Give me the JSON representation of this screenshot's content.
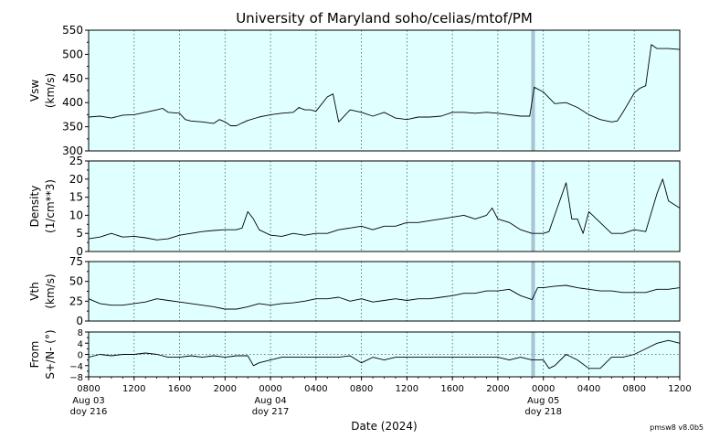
{
  "chart_data": [
    {
      "type": "line",
      "title": "University of Maryland  soho/celias/mtof/PM",
      "ylabel": [
        "Vsw",
        "(km/s)"
      ],
      "ylim": [
        300,
        550
      ],
      "yticks": [
        300,
        350,
        400,
        450,
        500,
        550
      ],
      "series": [
        {
          "points": [
            [
              8,
              370
            ],
            [
              9,
              372
            ],
            [
              10,
              368
            ],
            [
              11,
              374
            ],
            [
              12,
              375
            ],
            [
              13,
              380
            ],
            [
              14,
              385
            ],
            [
              14.5,
              388
            ],
            [
              15,
              380
            ],
            [
              16,
              378
            ],
            [
              16.5,
              365
            ],
            [
              17,
              362
            ],
            [
              18,
              360
            ],
            [
              19,
              357
            ],
            [
              19.5,
              365
            ],
            [
              20,
              360
            ],
            [
              20.5,
              352
            ],
            [
              21,
              352
            ],
            [
              21.5,
              358
            ],
            [
              22,
              363
            ],
            [
              23,
              370
            ],
            [
              24,
              375
            ],
            [
              25,
              378
            ],
            [
              26,
              380
            ],
            [
              26.5,
              390
            ],
            [
              27,
              385
            ],
            [
              27.5,
              385
            ],
            [
              28,
              382
            ],
            [
              29,
              412
            ],
            [
              29.5,
              418
            ],
            [
              30,
              360
            ],
            [
              31,
              385
            ],
            [
              32,
              380
            ],
            [
              33,
              372
            ],
            [
              34,
              380
            ],
            [
              35,
              368
            ],
            [
              36,
              365
            ],
            [
              37,
              370
            ],
            [
              38,
              370
            ],
            [
              39,
              372
            ],
            [
              40,
              380
            ],
            [
              41,
              380
            ],
            [
              42,
              378
            ],
            [
              43,
              380
            ],
            [
              44,
              378
            ],
            [
              45,
              375
            ],
            [
              46,
              372
            ],
            [
              46.5,
              372
            ],
            [
              46.8,
              372
            ],
            [
              47.2,
              432
            ],
            [
              48,
              422
            ],
            [
              48.5,
              410
            ],
            [
              49,
              398
            ],
            [
              50,
              400
            ],
            [
              51,
              390
            ],
            [
              52,
              375
            ],
            [
              53,
              365
            ],
            [
              54,
              360
            ],
            [
              54.5,
              362
            ],
            [
              55,
              380
            ],
            [
              56,
              420
            ],
            [
              56.5,
              430
            ],
            [
              57,
              435
            ],
            [
              57.5,
              520
            ],
            [
              58,
              512
            ],
            [
              59,
              512
            ],
            [
              60,
              510
            ],
            [
              61,
              506
            ],
            [
              62,
              500
            ],
            [
              63,
              505
            ]
          ]
        }
      ]
    },
    {
      "type": "line",
      "ylabel": [
        "Density",
        "(1/cm**3)"
      ],
      "ylim": [
        0,
        25
      ],
      "yticks": [
        0,
        5,
        10,
        15,
        20,
        25
      ],
      "series": [
        {
          "points": [
            [
              8,
              3.5
            ],
            [
              9,
              4
            ],
            [
              10,
              5
            ],
            [
              11,
              4
            ],
            [
              12,
              4.2
            ],
            [
              13,
              3.8
            ],
            [
              14,
              3.2
            ],
            [
              15,
              3.5
            ],
            [
              16,
              4.5
            ],
            [
              17,
              5
            ],
            [
              18,
              5.5
            ],
            [
              19,
              5.8
            ],
            [
              20,
              6
            ],
            [
              21,
              6
            ],
            [
              21.5,
              6.5
            ],
            [
              22,
              11
            ],
            [
              22.5,
              9
            ],
            [
              23,
              6
            ],
            [
              24,
              4.5
            ],
            [
              25,
              4.2
            ],
            [
              26,
              5
            ],
            [
              27,
              4.5
            ],
            [
              28,
              5
            ],
            [
              29,
              5
            ],
            [
              30,
              6
            ],
            [
              31,
              6.5
            ],
            [
              32,
              7
            ],
            [
              33,
              6
            ],
            [
              34,
              7
            ],
            [
              35,
              7
            ],
            [
              36,
              8
            ],
            [
              37,
              8
            ],
            [
              38,
              8.5
            ],
            [
              39,
              9
            ],
            [
              40,
              9.5
            ],
            [
              41,
              10
            ],
            [
              42,
              9
            ],
            [
              43,
              10
            ],
            [
              43.5,
              12
            ],
            [
              44,
              9
            ],
            [
              45,
              8
            ],
            [
              46,
              6
            ],
            [
              47,
              5
            ],
            [
              48,
              5
            ],
            [
              48.5,
              5.5
            ],
            [
              49,
              10
            ],
            [
              50,
              19
            ],
            [
              50.5,
              9
            ],
            [
              51,
              9
            ],
            [
              51.5,
              5
            ],
            [
              52,
              11
            ],
            [
              53,
              8
            ],
            [
              54,
              5
            ],
            [
              55,
              5
            ],
            [
              56,
              6
            ],
            [
              57,
              5.5
            ],
            [
              58,
              16
            ],
            [
              58.5,
              20
            ],
            [
              59,
              14
            ],
            [
              60,
              12
            ],
            [
              61,
              7
            ],
            [
              62,
              5
            ]
          ]
        }
      ]
    },
    {
      "type": "line",
      "ylabel": [
        "Vth",
        "(km/s)"
      ],
      "ylim": [
        0,
        75
      ],
      "yticks": [
        0,
        25,
        50,
        75
      ],
      "series": [
        {
          "points": [
            [
              8,
              28
            ],
            [
              9,
              22
            ],
            [
              10,
              20
            ],
            [
              11,
              20
            ],
            [
              12,
              22
            ],
            [
              13,
              24
            ],
            [
              14,
              28
            ],
            [
              15,
              26
            ],
            [
              16,
              24
            ],
            [
              17,
              22
            ],
            [
              18,
              20
            ],
            [
              19,
              18
            ],
            [
              20,
              15
            ],
            [
              21,
              15
            ],
            [
              22,
              18
            ],
            [
              23,
              22
            ],
            [
              24,
              20
            ],
            [
              25,
              22
            ],
            [
              26,
              23
            ],
            [
              27,
              25
            ],
            [
              28,
              28
            ],
            [
              29,
              28
            ],
            [
              30,
              30
            ],
            [
              31,
              25
            ],
            [
              32,
              28
            ],
            [
              33,
              24
            ],
            [
              34,
              26
            ],
            [
              35,
              28
            ],
            [
              36,
              26
            ],
            [
              37,
              28
            ],
            [
              38,
              28
            ],
            [
              39,
              30
            ],
            [
              40,
              32
            ],
            [
              41,
              35
            ],
            [
              42,
              35
            ],
            [
              43,
              38
            ],
            [
              44,
              38
            ],
            [
              45,
              40
            ],
            [
              46,
              32
            ],
            [
              47,
              27
            ],
            [
              47.5,
              42
            ],
            [
              48,
              42
            ],
            [
              49,
              44
            ],
            [
              50,
              45
            ],
            [
              51,
              42
            ],
            [
              52,
              40
            ],
            [
              53,
              38
            ],
            [
              54,
              38
            ],
            [
              55,
              36
            ],
            [
              56,
              36
            ],
            [
              57,
              36
            ],
            [
              58,
              40
            ],
            [
              59,
              40
            ],
            [
              60,
              42
            ],
            [
              61,
              44
            ],
            [
              62,
              45
            ],
            [
              63,
              46
            ]
          ]
        }
      ]
    },
    {
      "type": "line",
      "ylabel": [
        "From",
        "S+/N- (°)"
      ],
      "ylim": [
        -8,
        8
      ],
      "yticks": [
        -8,
        -4,
        0,
        4,
        8
      ],
      "yticklabels": [
        "−8",
        "−4",
        "0",
        "4",
        "8"
      ],
      "series": [
        {
          "points": [
            [
              8,
              -1
            ],
            [
              9,
              0
            ],
            [
              10,
              -0.5
            ],
            [
              11,
              0
            ],
            [
              12,
              0
            ],
            [
              13,
              0.5
            ],
            [
              14,
              0
            ],
            [
              15,
              -1
            ],
            [
              16,
              -1
            ],
            [
              17,
              -0.5
            ],
            [
              18,
              -1
            ],
            [
              19,
              -0.5
            ],
            [
              20,
              -1
            ],
            [
              21,
              -0.5
            ],
            [
              22,
              -0.5
            ],
            [
              22.5,
              -4
            ],
            [
              23,
              -3
            ],
            [
              24,
              -2
            ],
            [
              25,
              -1
            ],
            [
              26,
              -1
            ],
            [
              27,
              -1
            ],
            [
              28,
              -1
            ],
            [
              29,
              -1
            ],
            [
              30,
              -1
            ],
            [
              31,
              -0.5
            ],
            [
              32,
              -3
            ],
            [
              33,
              -1
            ],
            [
              34,
              -2
            ],
            [
              35,
              -1
            ],
            [
              36,
              -1
            ],
            [
              37,
              -1
            ],
            [
              38,
              -1
            ],
            [
              39,
              -1
            ],
            [
              40,
              -1
            ],
            [
              41,
              -1
            ],
            [
              42,
              -1
            ],
            [
              43,
              -1
            ],
            [
              44,
              -1
            ],
            [
              45,
              -2
            ],
            [
              46,
              -1
            ],
            [
              47,
              -2
            ],
            [
              48,
              -2
            ],
            [
              48.5,
              -5
            ],
            [
              49,
              -4
            ],
            [
              50,
              0
            ],
            [
              51,
              -2
            ],
            [
              52,
              -5
            ],
            [
              53,
              -5
            ],
            [
              53.5,
              -3
            ],
            [
              54,
              -1
            ],
            [
              55,
              -1
            ],
            [
              56,
              0
            ],
            [
              57,
              2
            ],
            [
              58,
              4
            ],
            [
              59,
              5
            ],
            [
              60,
              4
            ],
            [
              61,
              3
            ],
            [
              62,
              3
            ]
          ]
        }
      ]
    }
  ],
  "x_axis": {
    "xlabel": "Date (2024)",
    "xlim": [
      8,
      60
    ],
    "ticks": [
      8,
      12,
      16,
      20,
      24,
      28,
      32,
      36,
      40,
      44,
      48,
      52,
      56,
      60
    ],
    "tick_labels": [
      "0800",
      "1200",
      "1600",
      "2000",
      "0000",
      "0400",
      "0800",
      "1200",
      "1600",
      "2000",
      "0000",
      "0400",
      "0800",
      "1200"
    ],
    "day_labels": [
      {
        "at": 8,
        "line1": "Aug 03",
        "line2": "doy 216"
      },
      {
        "at": 24,
        "line1": "Aug 04",
        "line2": "doy 217"
      },
      {
        "at": 48,
        "line1": "Aug 05",
        "line2": "doy 218"
      }
    ],
    "grid": true
  },
  "marker_hour": 47.1,
  "colors": {
    "panel_bg": "#e0ffff",
    "line": "#000000",
    "marker": "#a0b8cc",
    "grid": "#555555"
  },
  "footer": {
    "version": "pmsw8 v8.0b5"
  }
}
